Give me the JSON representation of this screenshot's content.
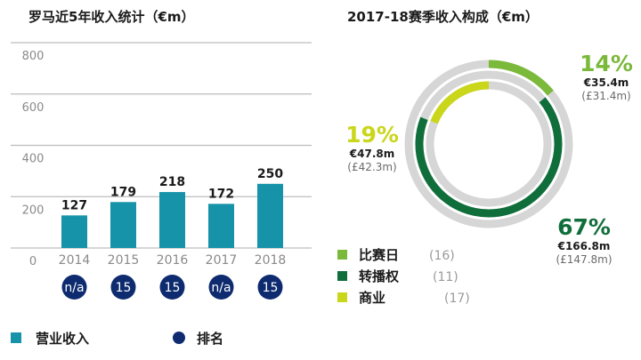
{
  "chart_data": [
    {
      "type": "bar",
      "title": "罗马近5年收入统计（€m）",
      "categories": [
        "2014",
        "2015",
        "2016",
        "2017",
        "2018"
      ],
      "values": [
        127,
        179,
        218,
        172,
        250
      ],
      "rank_values": [
        "n/a",
        "15",
        "15",
        "n/a",
        "15"
      ],
      "yticks": [
        "0",
        "200",
        "400",
        "600",
        "800"
      ],
      "ylim": [
        0,
        800
      ],
      "grid": true,
      "xlabel": "",
      "ylabel": "",
      "legend": [
        {
          "label": "营业收入",
          "marker": "square",
          "color": "#1693a8"
        },
        {
          "label": "排名",
          "marker": "circle",
          "color": "#0d2b6e"
        }
      ],
      "legend_position": "bottom",
      "colors": {
        "bar": "#1693a8",
        "rank": "#0d2b6e",
        "grid": "#bdbdbd"
      }
    },
    {
      "type": "pie",
      "title": "2017-18赛季收入构成（€m）",
      "slices": [
        {
          "name": "比赛日",
          "percent": 14,
          "percent_label": "14%",
          "eur": "€35.4m",
          "gbp": "(£31.4m)",
          "rank": "(16)",
          "color": "#7ab93a"
        },
        {
          "name": "转播权",
          "percent": 67,
          "percent_label": "67%",
          "eur": "€166.8m",
          "gbp": "(£147.8m)",
          "rank": "(11)",
          "color": "#0f6e3a"
        },
        {
          "name": "商业",
          "percent": 19,
          "percent_label": "19%",
          "eur": "€47.8m",
          "gbp": "(£42.3m)",
          "rank": "(17)",
          "color": "#c9d61a"
        }
      ],
      "track_color": "#d6d6d6",
      "legend_position": "bottom-left"
    }
  ]
}
